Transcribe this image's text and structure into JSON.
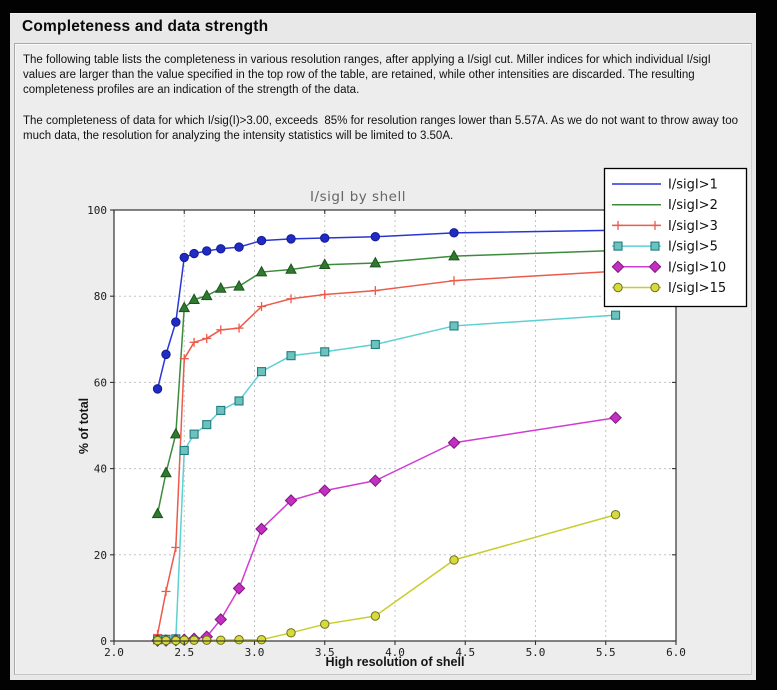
{
  "window": {
    "title": "Completeness and data strength"
  },
  "paragraphs": [
    "The following table lists the completeness in various resolution ranges, after applying a I/sigI cut. Miller indices for which individual I/sigI values are larger than the value specified in the top row of the table, are retained, while other intensities are discarded. The resulting completeness profiles are an indication of the strength of the data.",
    "The completeness of data for which I/sig(I)>3.00, exceeds  85% for resolution ranges lower than 5.57A. As we do not want to throw away too much data, the resolution for analyzing the intensity statistics will be limited to 3.50A."
  ],
  "chart_data": {
    "type": "line",
    "title": "I/sigI by shell",
    "xlabel": "High resolution of shell",
    "ylabel": "% of total",
    "xlim": [
      2.0,
      6.0
    ],
    "ylim": [
      0,
      100
    ],
    "xticks": [
      "2.0",
      "2.5",
      "3.0",
      "3.5",
      "4.0",
      "4.5",
      "5.0",
      "5.5",
      "6.0"
    ],
    "yticks": [
      "0",
      "20",
      "40",
      "60",
      "80",
      "100"
    ],
    "grid": "dashed",
    "grid_color": "#c3c3c3",
    "plot_bg": "#ffffff",
    "axis_color": "#333333",
    "title_color": "#666666",
    "legend_position": "upper right",
    "x": [
      2.31,
      2.37,
      2.44,
      2.5,
      2.57,
      2.66,
      2.76,
      2.89,
      3.05,
      3.26,
      3.5,
      3.86,
      4.42,
      5.57
    ],
    "series": [
      {
        "name": "I/sigI>1",
        "color": "#2a35d6",
        "marker": "circle",
        "marker_fill": "#1f2bc4",
        "marker_edge": "#121b8f",
        "values": [
          58.5,
          66.5,
          74.0,
          89.0,
          89.9,
          90.5,
          91.0,
          91.4,
          92.9,
          93.3,
          93.5,
          93.8,
          94.7,
          95.3
        ]
      },
      {
        "name": "I/sigI>2",
        "color": "#3d8b3d",
        "marker": "triangle",
        "marker_fill": "#2f7a2f",
        "marker_edge": "#1c541c",
        "values": [
          29.5,
          39.0,
          48.0,
          77.3,
          79.2,
          80.1,
          81.8,
          82.3,
          85.6,
          86.2,
          87.3,
          87.7,
          89.3,
          90.6
        ]
      },
      {
        "name": "I/sigI>3",
        "color": "#ec5a4b",
        "marker": "plus",
        "marker_fill": "#ec5a4b",
        "marker_edge": "#ec5a4b",
        "values": [
          1.5,
          11.5,
          21.7,
          65.5,
          69.3,
          70.2,
          72.2,
          72.6,
          77.6,
          79.4,
          80.4,
          81.3,
          83.6,
          85.8
        ]
      },
      {
        "name": "I/sigI>5",
        "color": "#5dd0d2",
        "marker": "square",
        "marker_fill": "#6ec2be",
        "marker_edge": "#1e7d80",
        "values": [
          0.3,
          0.4,
          0.5,
          44.2,
          48.0,
          50.2,
          53.5,
          55.7,
          62.5,
          66.2,
          67.1,
          68.8,
          73.1,
          75.6
        ]
      },
      {
        "name": "I/sigI>10",
        "color": "#d23bd2",
        "marker": "diamond",
        "marker_fill": "#c32ec3",
        "marker_edge": "#7c197c",
        "values": [
          0.1,
          0.1,
          0.2,
          0.3,
          0.5,
          1.0,
          5.0,
          12.2,
          26.0,
          32.6,
          34.9,
          37.2,
          46.0,
          51.8
        ]
      },
      {
        "name": "I/sigI>15",
        "color": "#c9cd2c",
        "marker": "circle",
        "marker_fill": "#d6da3e",
        "marker_edge": "#6f721a",
        "values": [
          0.1,
          0.1,
          0.1,
          0.2,
          0.2,
          0.2,
          0.2,
          0.3,
          0.3,
          1.9,
          3.9,
          5.8,
          18.8,
          29.3
        ]
      }
    ]
  }
}
